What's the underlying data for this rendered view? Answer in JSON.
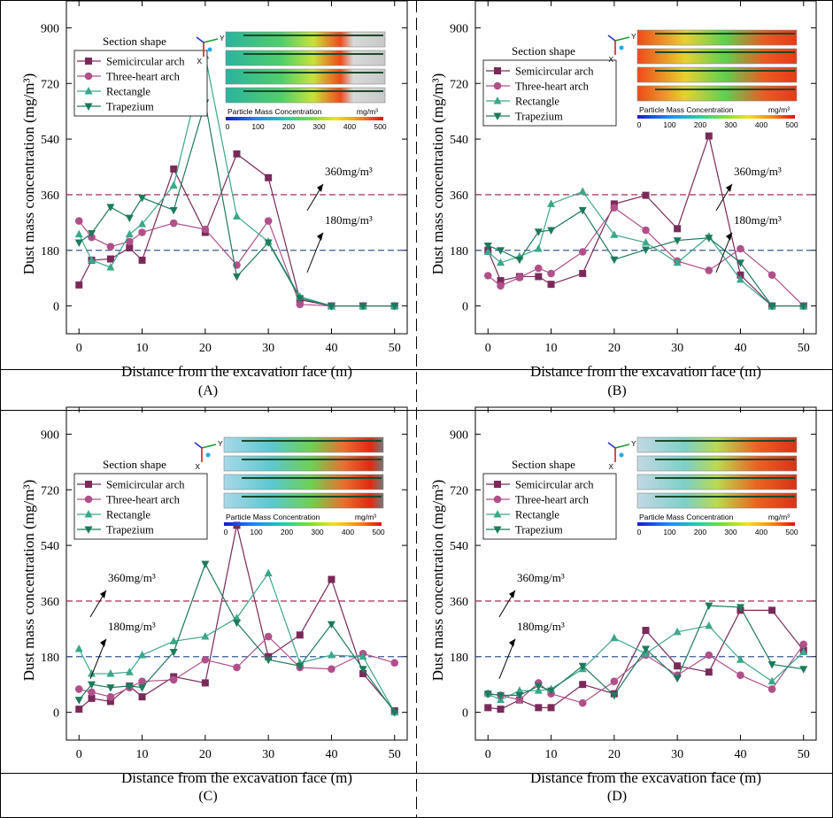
{
  "chart_data": [
    {
      "type": "line",
      "panel_label": "(A)",
      "xlabel": "Distance from the excavation face (m)",
      "ylabel": "Dust mass concentration (mg/m³)",
      "xticks": [
        0,
        10,
        20,
        30,
        40,
        50
      ],
      "yticks": [
        0,
        180,
        360,
        540,
        720,
        900
      ],
      "xlim": [
        -2,
        52
      ],
      "ylim": [
        -90,
        990
      ],
      "legend_title": "Section shape",
      "thresholds": [
        {
          "value": 360,
          "label": "360mg/m³",
          "color": "#b04060"
        },
        {
          "value": 180,
          "label": "180mg/m³",
          "color": "#3a5a9a"
        }
      ],
      "colorbar": {
        "title": "Particle Mass Concentration",
        "unit": "mg/m³",
        "ticks": [
          "0",
          "100",
          "200",
          "300",
          "400",
          "500"
        ]
      },
      "series": [
        {
          "name": "Semicircular arch",
          "color": "#7a2a5a",
          "marker": "square",
          "x": [
            0,
            2,
            5,
            8,
            10,
            15,
            20,
            25,
            30,
            35,
            40,
            45,
            50
          ],
          "y": [
            68,
            148,
            152,
            188,
            148,
            443,
            238,
            492,
            415,
            20,
            0,
            0,
            0
          ]
        },
        {
          "name": "Three-heart arch",
          "color": "#b0508a",
          "marker": "circle",
          "x": [
            0,
            2,
            5,
            8,
            10,
            15,
            20,
            25,
            30,
            35,
            40,
            45,
            50
          ],
          "y": [
            275,
            222,
            192,
            208,
            238,
            268,
            248,
            132,
            275,
            5,
            0,
            0,
            0
          ]
        },
        {
          "name": "Rectangle",
          "color": "#3aa88a",
          "marker": "triangle-up",
          "x": [
            0,
            2,
            5,
            8,
            10,
            15,
            20,
            25,
            30,
            35,
            40,
            45,
            50
          ],
          "y": [
            232,
            148,
            125,
            232,
            265,
            390,
            810,
            290,
            208,
            30,
            0,
            0,
            0
          ]
        },
        {
          "name": "Trapezium",
          "color": "#1d7a5c",
          "marker": "triangle-down",
          "x": [
            0,
            2,
            5,
            8,
            10,
            15,
            20,
            25,
            30,
            35,
            40,
            45,
            50
          ],
          "y": [
            205,
            235,
            320,
            285,
            350,
            310,
            658,
            95,
            205,
            25,
            0,
            0,
            0
          ]
        }
      ]
    },
    {
      "type": "line",
      "panel_label": "(B)",
      "xlabel": "Distance from the excavation face (m)",
      "ylabel": "Dust mass concentration (mg/m³)",
      "xticks": [
        0,
        10,
        20,
        30,
        40,
        50
      ],
      "yticks": [
        0,
        180,
        360,
        540,
        720,
        900
      ],
      "xlim": [
        -2,
        52
      ],
      "ylim": [
        -90,
        990
      ],
      "legend_title": "Section shape",
      "thresholds": [
        {
          "value": 360,
          "label": "360mg/m³",
          "color": "#b04060"
        },
        {
          "value": 180,
          "label": "180mg/m³",
          "color": "#3a5a9a"
        }
      ],
      "colorbar": {
        "title": "Particle Mass Concentration",
        "unit": "mg/m³",
        "ticks": [
          "0",
          "100",
          "200",
          "300",
          "400",
          "500"
        ]
      },
      "series": [
        {
          "name": "Semicircular arch",
          "color": "#7a2a5a",
          "marker": "square",
          "x": [
            0,
            2,
            5,
            8,
            10,
            15,
            20,
            25,
            30,
            35,
            40,
            45,
            50
          ],
          "y": [
            180,
            82,
            95,
            95,
            70,
            105,
            330,
            358,
            250,
            550,
            100,
            0,
            0
          ]
        },
        {
          "name": "Three-heart arch",
          "color": "#b0508a",
          "marker": "circle",
          "x": [
            0,
            2,
            5,
            8,
            10,
            15,
            20,
            25,
            30,
            35,
            40,
            45,
            50
          ],
          "y": [
            98,
            65,
            92,
            122,
            105,
            175,
            318,
            245,
            145,
            115,
            185,
            100,
            0
          ]
        },
        {
          "name": "Rectangle",
          "color": "#3aa88a",
          "marker": "triangle-up",
          "x": [
            0,
            2,
            5,
            8,
            10,
            15,
            20,
            25,
            30,
            35,
            40,
            45,
            50
          ],
          "y": [
            175,
            140,
            160,
            185,
            330,
            370,
            230,
            205,
            140,
            225,
            85,
            0,
            0
          ]
        },
        {
          "name": "Trapezium",
          "color": "#1d7a5c",
          "marker": "triangle-down",
          "x": [
            0,
            2,
            5,
            8,
            10,
            15,
            20,
            25,
            30,
            35,
            40,
            45,
            50
          ],
          "y": [
            195,
            180,
            150,
            240,
            245,
            310,
            150,
            182,
            212,
            220,
            140,
            0,
            0
          ]
        }
      ]
    },
    {
      "type": "line",
      "panel_label": "(C)",
      "xlabel": "Distance from the excavation face (m)",
      "ylabel": "Dust mass concentration (mg/m³)",
      "xticks": [
        0,
        10,
        20,
        30,
        40,
        50
      ],
      "yticks": [
        0,
        180,
        360,
        540,
        720,
        900
      ],
      "xlim": [
        -2,
        52
      ],
      "ylim": [
        -90,
        990
      ],
      "legend_title": "Section shape",
      "thresholds": [
        {
          "value": 360,
          "label": "360mg/m³",
          "color": "#b04060"
        },
        {
          "value": 180,
          "label": "180mg/m³",
          "color": "#3a5a9a"
        }
      ],
      "colorbar": {
        "title": "Particle Mass Concentration",
        "unit": "mg/m³",
        "ticks": [
          "0",
          "100",
          "200",
          "300",
          "400",
          "500"
        ]
      },
      "series": [
        {
          "name": "Semicircular arch",
          "color": "#7a2a5a",
          "marker": "square",
          "x": [
            0,
            2,
            5,
            8,
            10,
            15,
            20,
            25,
            30,
            35,
            40,
            45,
            50
          ],
          "y": [
            10,
            45,
            35,
            85,
            50,
            115,
            95,
            605,
            180,
            250,
            430,
            125,
            5
          ]
        },
        {
          "name": "Three-heart arch",
          "color": "#b0508a",
          "marker": "circle",
          "x": [
            0,
            2,
            5,
            8,
            10,
            15,
            20,
            25,
            30,
            35,
            40,
            45,
            50
          ],
          "y": [
            75,
            65,
            50,
            80,
            100,
            105,
            170,
            145,
            245,
            145,
            140,
            190,
            160
          ]
        },
        {
          "name": "Rectangle",
          "color": "#3aa88a",
          "marker": "triangle-up",
          "x": [
            0,
            2,
            5,
            8,
            10,
            15,
            20,
            25,
            30,
            35,
            40,
            45,
            50
          ],
          "y": [
            205,
            125,
            125,
            130,
            185,
            230,
            245,
            305,
            450,
            160,
            185,
            180,
            0
          ]
        },
        {
          "name": "Trapezium",
          "color": "#1d7a5c",
          "marker": "triangle-down",
          "x": [
            0,
            2,
            5,
            8,
            10,
            15,
            20,
            25,
            30,
            35,
            40,
            45,
            50
          ],
          "y": [
            40,
            90,
            80,
            85,
            80,
            195,
            480,
            290,
            170,
            150,
            285,
            140,
            0
          ]
        }
      ]
    },
    {
      "type": "line",
      "panel_label": "(D)",
      "xlabel": "Distance from the excavation face (m)",
      "ylabel": "Dust mass concentration (mg/m³)",
      "xticks": [
        0,
        10,
        20,
        30,
        40,
        50
      ],
      "yticks": [
        0,
        180,
        360,
        540,
        720,
        900
      ],
      "xlim": [
        -2,
        52
      ],
      "ylim": [
        -90,
        990
      ],
      "legend_title": "Section shape",
      "thresholds": [
        {
          "value": 360,
          "label": "360mg/m³",
          "color": "#b04060"
        },
        {
          "value": 180,
          "label": "180mg/m³",
          "color": "#3a5a9a"
        }
      ],
      "colorbar": {
        "title": "Particle Mass Concentration",
        "unit": "mg/m³",
        "ticks": [
          "0",
          "100",
          "200",
          "300",
          "400",
          "500"
        ]
      },
      "series": [
        {
          "name": "Semicircular arch",
          "color": "#7a2a5a",
          "marker": "square",
          "x": [
            0,
            2,
            5,
            8,
            10,
            15,
            20,
            25,
            30,
            35,
            40,
            45,
            50
          ],
          "y": [
            15,
            10,
            40,
            15,
            15,
            90,
            60,
            265,
            150,
            130,
            330,
            330,
            200
          ]
        },
        {
          "name": "Three-heart arch",
          "color": "#b0508a",
          "marker": "circle",
          "x": [
            0,
            2,
            5,
            8,
            10,
            15,
            20,
            25,
            30,
            35,
            40,
            45,
            50
          ],
          "y": [
            60,
            55,
            40,
            95,
            60,
            30,
            100,
            185,
            120,
            185,
            120,
            75,
            220
          ]
        },
        {
          "name": "Rectangle",
          "color": "#3aa88a",
          "marker": "triangle-up",
          "x": [
            0,
            2,
            5,
            8,
            10,
            15,
            20,
            25,
            30,
            35,
            40,
            45,
            50
          ],
          "y": [
            60,
            40,
            70,
            70,
            75,
            140,
            240,
            190,
            260,
            280,
            170,
            100,
            195
          ]
        },
        {
          "name": "Trapezium",
          "color": "#1d7a5c",
          "marker": "triangle-down",
          "x": [
            0,
            2,
            5,
            8,
            10,
            15,
            20,
            25,
            30,
            35,
            40,
            45,
            50
          ],
          "y": [
            60,
            55,
            55,
            85,
            70,
            150,
            55,
            205,
            110,
            345,
            340,
            155,
            140
          ]
        }
      ]
    }
  ]
}
